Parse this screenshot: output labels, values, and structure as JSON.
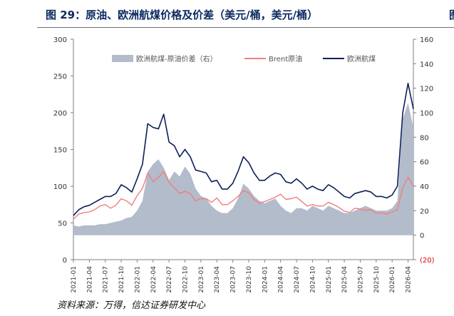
{
  "title": "图 29：原油、欧洲航煤价格及价差（美元/桶，美元/桶）",
  "corner_mark": "图",
  "source": "资料来源：万得，信达证券研发中心",
  "colors": {
    "spread": "#b3bccb",
    "brent": "#f07f7f",
    "jet": "#0c1f5a",
    "axis": "#7f7f7f",
    "neg": "#e60000"
  },
  "chart_data": {
    "type": "line",
    "title": "",
    "xlabel": "",
    "ylabel": "",
    "ylim": [
      0,
      300
    ],
    "y2lim": [
      -20,
      160
    ],
    "yticks": [
      0,
      50,
      100,
      150,
      200,
      250,
      300
    ],
    "y2ticks": [
      0,
      20,
      40,
      60,
      80,
      100,
      120,
      140,
      160
    ],
    "y2tick_labels": [
      "0",
      "20",
      "40",
      "60",
      "80",
      "100",
      "120",
      "140",
      "160"
    ],
    "y2_negative_label": "(20)",
    "xlim": [
      "2021-01",
      "2026-05"
    ],
    "x_ticks": [
      "2021-01",
      "2021-04",
      "2021-07",
      "2021-10",
      "2022-01",
      "2022-04",
      "2022-07",
      "2022-10",
      "2023-01",
      "2023-04",
      "2023-07",
      "2023-10",
      "2024-01",
      "2024-04",
      "2024-07",
      "2024-10",
      "2025-01",
      "2025-04",
      "2025-07",
      "2025-10",
      "2026-01",
      "2026-04"
    ],
    "legend_position": "top",
    "grid": false,
    "series": [
      {
        "name": "欧洲航煤-原油价差（右）",
        "kind": "area",
        "axis": "right",
        "x": [
          "2021-01",
          "2021-02",
          "2021-03",
          "2021-04",
          "2021-05",
          "2021-06",
          "2021-07",
          "2021-08",
          "2021-09",
          "2021-10",
          "2021-11",
          "2021-12",
          "2022-01",
          "2022-02",
          "2022-03",
          "2022-04",
          "2022-05",
          "2022-06",
          "2022-07",
          "2022-08",
          "2022-09",
          "2022-10",
          "2022-11",
          "2022-12",
          "2023-01",
          "2023-02",
          "2023-03",
          "2023-04",
          "2023-05",
          "2023-06",
          "2023-07",
          "2023-08",
          "2023-09",
          "2023-10",
          "2023-11",
          "2023-12",
          "2024-01",
          "2024-02",
          "2024-03",
          "2024-04",
          "2024-05",
          "2024-06",
          "2024-07",
          "2024-08",
          "2024-09",
          "2024-10",
          "2024-11",
          "2024-12",
          "2025-01",
          "2025-02",
          "2025-03",
          "2025-04",
          "2025-05",
          "2025-06",
          "2025-07",
          "2025-08",
          "2025-09",
          "2025-10",
          "2025-11",
          "2025-12",
          "2026-01",
          "2026-02",
          "2026-03",
          "2026-04",
          "2026-05"
        ],
        "values": [
          8,
          7,
          8,
          8,
          8,
          9,
          9,
          10,
          11,
          12,
          14,
          15,
          20,
          28,
          52,
          58,
          62,
          55,
          45,
          52,
          48,
          56,
          50,
          38,
          32,
          30,
          24,
          20,
          18,
          18,
          22,
          30,
          42,
          38,
          32,
          28,
          26,
          28,
          30,
          24,
          20,
          18,
          22,
          22,
          20,
          24,
          22,
          20,
          24,
          22,
          20,
          18,
          18,
          20,
          22,
          24,
          22,
          20,
          20,
          20,
          22,
          28,
          95,
          108,
          88
        ]
      },
      {
        "name": "Brent原油",
        "kind": "line",
        "axis": "left",
        "x": [
          "2021-01",
          "2021-02",
          "2021-03",
          "2021-04",
          "2021-05",
          "2021-06",
          "2021-07",
          "2021-08",
          "2021-09",
          "2021-10",
          "2021-11",
          "2021-12",
          "2022-01",
          "2022-02",
          "2022-03",
          "2022-04",
          "2022-05",
          "2022-06",
          "2022-07",
          "2022-08",
          "2022-09",
          "2022-10",
          "2022-11",
          "2022-12",
          "2023-01",
          "2023-02",
          "2023-03",
          "2023-04",
          "2023-05",
          "2023-06",
          "2023-07",
          "2023-08",
          "2023-09",
          "2023-10",
          "2023-11",
          "2023-12",
          "2024-01",
          "2024-02",
          "2024-03",
          "2024-04",
          "2024-05",
          "2024-06",
          "2024-07",
          "2024-08",
          "2024-09",
          "2024-10",
          "2024-11",
          "2024-12",
          "2025-01",
          "2025-02",
          "2025-03",
          "2025-04",
          "2025-05",
          "2025-06",
          "2025-07",
          "2025-08",
          "2025-09",
          "2025-10",
          "2025-11",
          "2025-12",
          "2026-01",
          "2026-02",
          "2026-03",
          "2026-04",
          "2026-05"
        ],
        "values": [
          55,
          62,
          64,
          65,
          68,
          73,
          75,
          70,
          74,
          83,
          80,
          74,
          87,
          97,
          118,
          106,
          112,
          120,
          105,
          98,
          90,
          93,
          90,
          80,
          83,
          83,
          78,
          84,
          75,
          75,
          80,
          86,
          94,
          91,
          82,
          77,
          79,
          82,
          85,
          89,
          82,
          83,
          85,
          79,
          73,
          75,
          73,
          73,
          78,
          75,
          71,
          66,
          64,
          70,
          69,
          67,
          68,
          63,
          64,
          62,
          65,
          68,
          98,
          112,
          100
        ]
      },
      {
        "name": "欧洲航煤",
        "kind": "line",
        "axis": "left",
        "x": [
          "2021-01",
          "2021-02",
          "2021-03",
          "2021-04",
          "2021-05",
          "2021-06",
          "2021-07",
          "2021-08",
          "2021-09",
          "2021-10",
          "2021-11",
          "2021-12",
          "2022-01",
          "2022-02",
          "2022-03",
          "2022-04",
          "2022-05",
          "2022-06",
          "2022-07",
          "2022-08",
          "2022-09",
          "2022-10",
          "2022-11",
          "2022-12",
          "2023-01",
          "2023-02",
          "2023-03",
          "2023-04",
          "2023-05",
          "2023-06",
          "2023-07",
          "2023-08",
          "2023-09",
          "2023-10",
          "2023-11",
          "2023-12",
          "2024-01",
          "2024-02",
          "2024-03",
          "2024-04",
          "2024-05",
          "2024-06",
          "2024-07",
          "2024-08",
          "2024-09",
          "2024-10",
          "2024-11",
          "2024-12",
          "2025-01",
          "2025-02",
          "2025-03",
          "2025-04",
          "2025-05",
          "2025-06",
          "2025-07",
          "2025-08",
          "2025-09",
          "2025-10",
          "2025-11",
          "2025-12",
          "2026-01",
          "2026-02",
          "2026-03",
          "2026-04",
          "2026-05"
        ],
        "values": [
          60,
          68,
          72,
          74,
          78,
          82,
          86,
          86,
          90,
          102,
          98,
          92,
          110,
          130,
          185,
          180,
          178,
          198,
          160,
          155,
          140,
          150,
          140,
          122,
          120,
          118,
          106,
          108,
          96,
          96,
          104,
          120,
          140,
          132,
          118,
          108,
          108,
          114,
          118,
          116,
          106,
          104,
          110,
          104,
          96,
          100,
          96,
          94,
          102,
          98,
          92,
          86,
          84,
          90,
          92,
          94,
          92,
          86,
          86,
          84,
          88,
          100,
          200,
          240,
          205
        ]
      }
    ]
  }
}
